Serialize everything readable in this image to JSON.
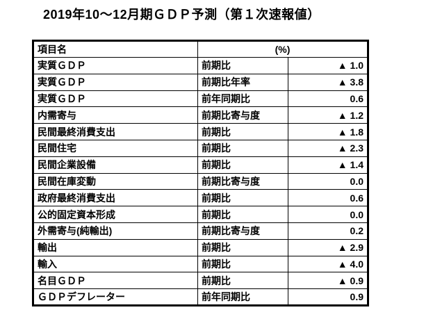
{
  "page": {
    "title": "2019年10～12月期ＧＤＰ予測（第１次速報値）"
  },
  "table": {
    "header": {
      "item_col": "項目名",
      "unit_col": "(%)"
    },
    "rows": [
      {
        "item": "実質ＧＤＰ",
        "measure": "前期比",
        "value": "▲ 1.0"
      },
      {
        "item": "実質ＧＤＰ",
        "measure": "前期比年率",
        "value": "▲ 3.8"
      },
      {
        "item": "実質ＧＤＰ",
        "measure": "前年同期比",
        "value": "0.6"
      },
      {
        "item": "内需寄与",
        "measure": "前期比寄与度",
        "value": "▲ 1.2"
      },
      {
        "item": "民間最終消費支出",
        "measure": "前期比",
        "value": "▲ 1.8"
      },
      {
        "item": "民間住宅",
        "measure": "前期比",
        "value": "▲ 2.3"
      },
      {
        "item": "民間企業設備",
        "measure": "前期比",
        "value": "▲ 1.4"
      },
      {
        "item": "民間在庫変動",
        "measure": "前期比寄与度",
        "value": "0.0"
      },
      {
        "item": "政府最終消費支出",
        "measure": "前期比",
        "value": "0.6"
      },
      {
        "item": "公的固定資本形成",
        "measure": "前期比",
        "value": "0.0"
      },
      {
        "item": "外需寄与(純輸出)",
        "measure": "前期比寄与度",
        "value": "0.2"
      },
      {
        "item": "輸出",
        "measure": "前期比",
        "value": "▲ 2.9"
      },
      {
        "item": "輸入",
        "measure": "前期比",
        "value": "▲ 4.0"
      },
      {
        "item": "名目ＧＤＰ",
        "measure": "前期比",
        "value": "▲ 0.9"
      },
      {
        "item": "ＧＤＰデフレーター",
        "measure": "前年同期比",
        "value": "0.9"
      }
    ],
    "colors": {
      "border": "#000000",
      "text": "#000000",
      "background": "#ffffff"
    }
  }
}
